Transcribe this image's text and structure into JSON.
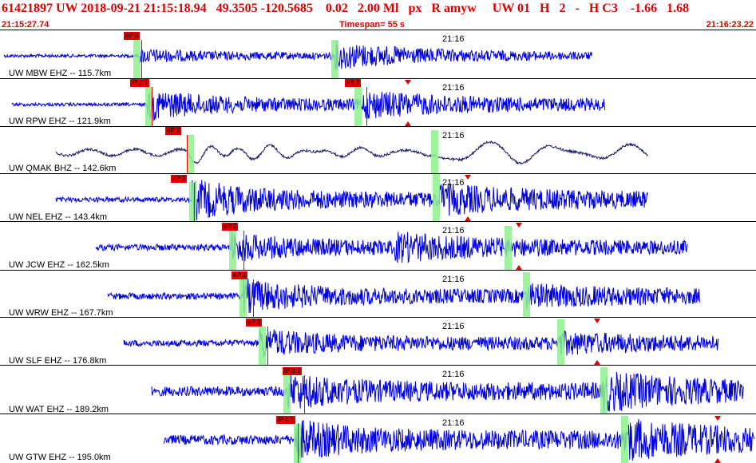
{
  "header": {
    "event_line": "61421897 UW 2018-09-21 21:15:18.94   49.3505 -120.5685    0.02   2.00 Ml   px   R amyw     UW 01   H   2   -   H C3    -1.66   1.68",
    "start_time": "21:15:27.74",
    "timespan": "Timespan=  55 s",
    "end_time": "21:16:23.22"
  },
  "panels": [
    {
      "label": "UW MBW EHZ -- 115.7km",
      "time": "21:16",
      "pick": "eP 3"
    },
    {
      "label": "UW RPW EHZ -- 121.9km",
      "time": "21:16",
      "pick": "iP d 1",
      "spick": "eS 2"
    },
    {
      "label": "UW QMAK BHZ -- 142.6km",
      "time": "21:16",
      "pick": "eP 2"
    },
    {
      "label": "UW NEL EHZ -- 143.4km",
      "time": "21:16",
      "pick": "eP 2"
    },
    {
      "label": "UW JCW EHZ -- 162.5km",
      "time": "21:16",
      "pick": "eP 2"
    },
    {
      "label": "UW WRW EHZ -- 167.7km",
      "time": "21:16",
      "pick": "eP 2"
    },
    {
      "label": "UW SLF EHZ -- 176.8km",
      "time": "21:16",
      "pick": "eP 2"
    },
    {
      "label": "UW WAT EHZ -- 189.2km",
      "time": "21:16",
      "pick": "iP d 1"
    },
    {
      "label": "UW GTW EHZ -- 195.0km",
      "time": "21:16",
      "pick": "iP c 1"
    }
  ],
  "colors": {
    "header_text": "#e00000",
    "trace": "#0000dd",
    "trace_broadband": "#1a1a66",
    "pick": "#e00000",
    "window": "#8ef08e"
  }
}
